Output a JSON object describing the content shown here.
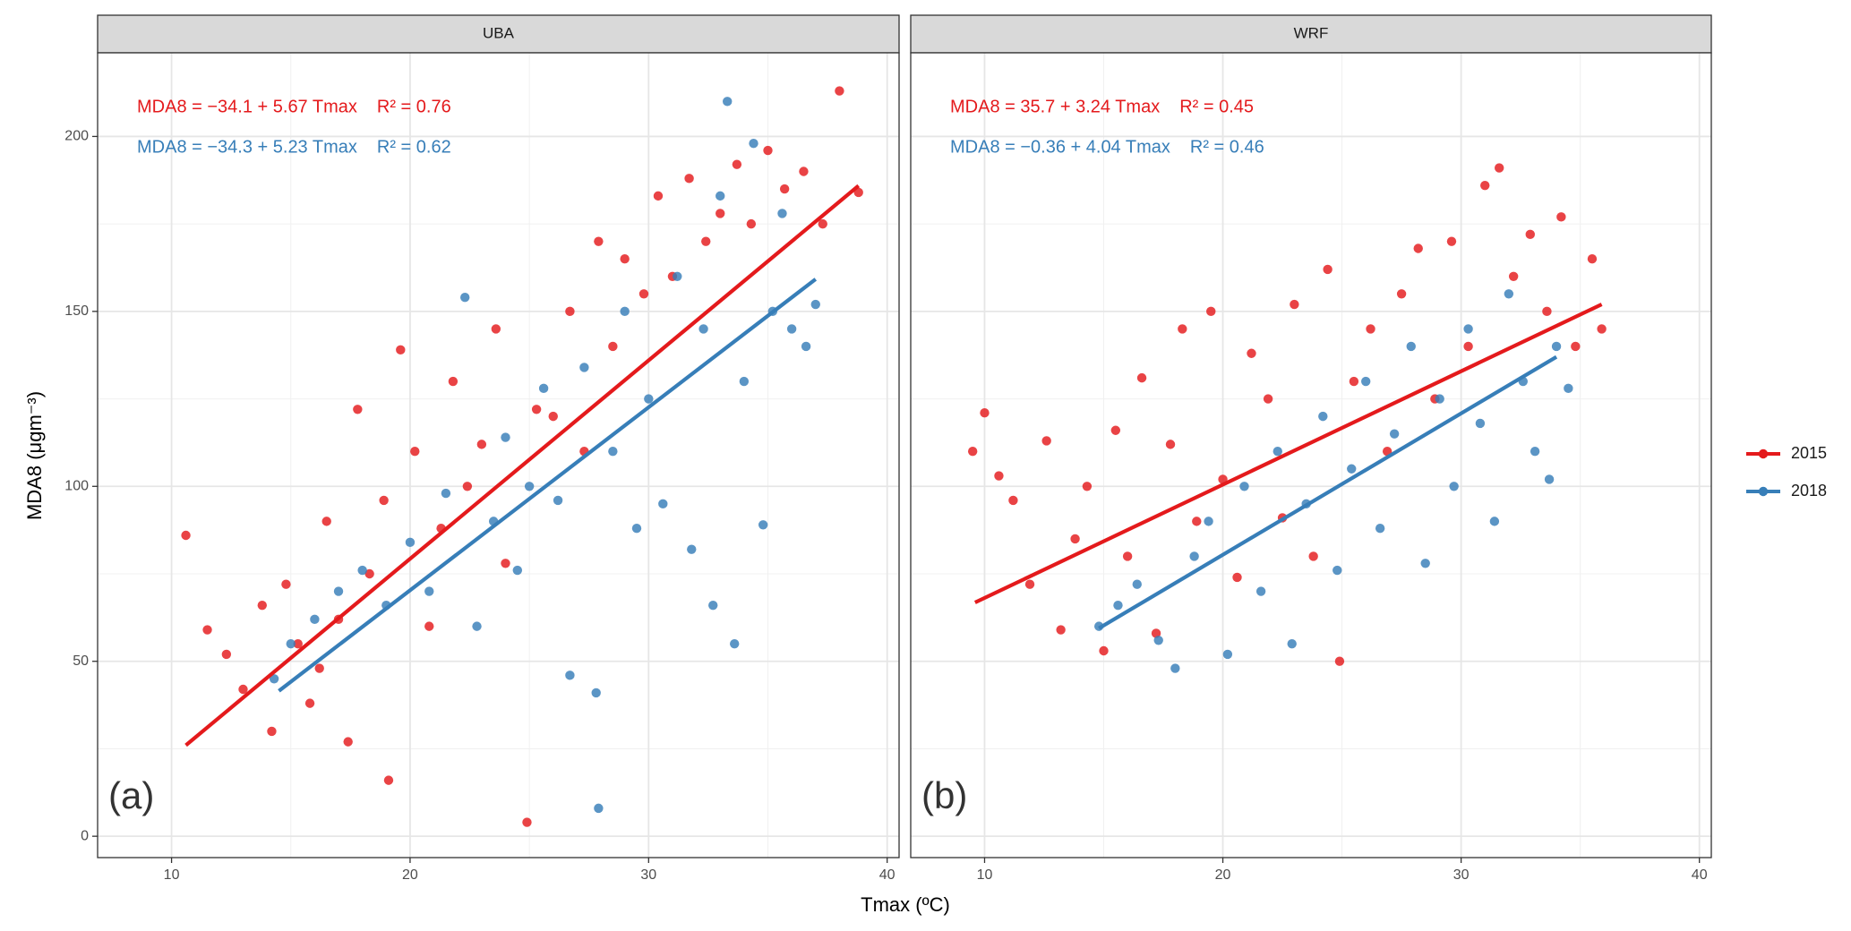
{
  "xlabel": "Tmax (ºC)",
  "ylabel": "MDA8 (μgm⁻³)",
  "chart_data": [
    {
      "type": "scatter",
      "title": "UBA",
      "annotation": "(a)",
      "xlim": [
        6.9,
        40.5
      ],
      "ylim": [
        -6.1,
        223.9
      ],
      "xticks": [
        10,
        20,
        30,
        40
      ],
      "yticks": [
        0,
        50,
        100,
        150,
        200
      ],
      "minor_xticks": [
        15,
        25,
        35
      ],
      "minor_yticks": [
        25,
        75,
        125,
        175
      ],
      "grid": true,
      "series": [
        {
          "name": "2015",
          "color": "#E41A1C",
          "equation": "MDA8 = −34.1 + 5.67 Tmax",
          "r2": "R² = 0.76",
          "fit": {
            "intercept": -34.1,
            "slope": 5.67,
            "x_range": [
              10.6,
              38.8
            ]
          },
          "x": [
            10.6,
            11.5,
            12.3,
            13,
            13.8,
            14.2,
            14.8,
            15.3,
            15.8,
            16.2,
            16.5,
            17,
            17.4,
            17.8,
            18.3,
            18.9,
            19.1,
            19.6,
            20.2,
            20.8,
            21.3,
            21.8,
            22.4,
            23,
            23.6,
            24,
            24.9,
            25.3,
            26,
            26.7,
            27.3,
            27.9,
            28.5,
            29,
            29.8,
            30.4,
            31,
            31.7,
            32.4,
            33,
            33.7,
            34.3,
            35,
            35.7,
            36.5,
            37.3,
            38,
            38.8
          ],
          "values": [
            86,
            59,
            52,
            42,
            66,
            30,
            72,
            55,
            38,
            48,
            90,
            62,
            27,
            122,
            75,
            96,
            16,
            139,
            110,
            60,
            88,
            130,
            100,
            112,
            145,
            78,
            4,
            122,
            120,
            150,
            110,
            170,
            140,
            165,
            155,
            183,
            160,
            188,
            170,
            178,
            192,
            175,
            196,
            185,
            190,
            175,
            213,
            184
          ]
        },
        {
          "name": "2018",
          "color": "#377EB8",
          "equation": "MDA8 = −34.3 + 5.23 Tmax",
          "r2": "R² = 0.62",
          "fit": {
            "intercept": -34.3,
            "slope": 5.23,
            "x_range": [
              14.5,
              37
            ]
          },
          "x": [
            14.3,
            15,
            16,
            17,
            18,
            19,
            20,
            20.8,
            21.5,
            22.3,
            22.8,
            23.5,
            24,
            24.5,
            25,
            25.6,
            26.2,
            26.7,
            27.3,
            27.8,
            27.9,
            28.5,
            29,
            29.5,
            30,
            30.6,
            31.2,
            31.8,
            32.3,
            32.7,
            33,
            33.3,
            33.6,
            34,
            34.4,
            34.8,
            35.2,
            35.6,
            36,
            36.6,
            37
          ],
          "values": [
            45,
            55,
            62,
            70,
            76,
            66,
            84,
            70,
            98,
            154,
            60,
            90,
            114,
            76,
            100,
            128,
            96,
            46,
            134,
            41,
            8,
            110,
            150,
            88,
            125,
            95,
            160,
            82,
            145,
            66,
            183,
            210,
            55,
            130,
            198,
            89,
            150,
            178,
            145,
            140,
            152
          ]
        }
      ]
    },
    {
      "type": "scatter",
      "title": "WRF",
      "annotation": "(b)",
      "xlim": [
        6.9,
        40.5
      ],
      "ylim": [
        -6.1,
        223.9
      ],
      "xticks": [
        10,
        20,
        30,
        40
      ],
      "yticks": [
        0,
        50,
        100,
        150,
        200
      ],
      "minor_xticks": [
        15,
        25,
        35
      ],
      "minor_yticks": [
        25,
        75,
        125,
        175
      ],
      "grid": true,
      "series": [
        {
          "name": "2015",
          "color": "#E41A1C",
          "equation": "MDA8 = 35.7 + 3.24 Tmax",
          "r2": "R² = 0.45",
          "fit": {
            "intercept": 35.7,
            "slope": 3.24,
            "x_range": [
              9.6,
              35.9
            ]
          },
          "x": [
            9.5,
            10,
            10.6,
            11.2,
            11.9,
            12.6,
            13.2,
            13.8,
            14.3,
            15,
            15.5,
            16,
            16.6,
            17.2,
            17.8,
            18.3,
            18.9,
            19.5,
            20,
            20.6,
            21.2,
            21.9,
            22.5,
            23,
            23.8,
            24.4,
            24.9,
            25.5,
            26.2,
            26.9,
            27.5,
            28.2,
            28.9,
            29.6,
            30.3,
            31,
            31.6,
            32.2,
            32.9,
            33.6,
            34.2,
            34.8,
            35.5,
            35.9
          ],
          "values": [
            110,
            121,
            103,
            96,
            72,
            113,
            59,
            85,
            100,
            53,
            116,
            80,
            131,
            58,
            112,
            145,
            90,
            150,
            102,
            74,
            138,
            125,
            91,
            152,
            80,
            162,
            50,
            130,
            145,
            110,
            155,
            168,
            125,
            170,
            140,
            186,
            191,
            160,
            172,
            150,
            177,
            140,
            165,
            145
          ]
        },
        {
          "name": "2018",
          "color": "#377EB8",
          "equation": "MDA8 = −0.36 + 4.04 Tmax",
          "r2": "R² = 0.46",
          "fit": {
            "intercept": -0.36,
            "slope": 4.04,
            "x_range": [
              14.8,
              34
            ]
          },
          "x": [
            14.8,
            15.6,
            16.4,
            17.3,
            18,
            18.8,
            19.4,
            20.2,
            20.9,
            21.6,
            22.3,
            22.9,
            23.5,
            24.2,
            24.8,
            25.4,
            26,
            26.6,
            27.2,
            27.9,
            28.5,
            29.1,
            29.7,
            30.3,
            30.8,
            31.4,
            32,
            32.6,
            33.1,
            33.7,
            34,
            34.5
          ],
          "values": [
            60,
            66,
            72,
            56,
            48,
            80,
            90,
            52,
            100,
            70,
            110,
            55,
            95,
            120,
            76,
            105,
            130,
            88,
            115,
            140,
            78,
            125,
            100,
            145,
            118,
            90,
            155,
            130,
            110,
            102,
            140,
            128
          ]
        }
      ]
    }
  ]
}
